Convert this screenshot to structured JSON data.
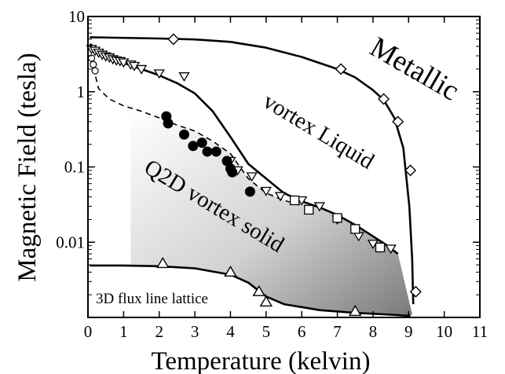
{
  "chart_data": {
    "type": "scatter",
    "title": "",
    "xlabel": "Temperature (kelvin)",
    "ylabel": "Magnetic Field (tesla)",
    "xlim": [
      0,
      11
    ],
    "ylim": [
      0.001,
      10
    ],
    "yscale": "log",
    "grid": false,
    "x_ticks": [
      "0",
      "1",
      "2",
      "3",
      "4",
      "5",
      "6",
      "7",
      "8",
      "9",
      "10",
      "11"
    ],
    "y_ticks": [
      {
        "value": 10,
        "label": "10"
      },
      {
        "value": 1,
        "label": "1"
      },
      {
        "value": 0.1,
        "label": "0.1"
      },
      {
        "value": 0.01,
        "label": "0.01"
      }
    ],
    "region_labels": {
      "metallic": "Metallic",
      "liquid": "vortex Liquid",
      "solid": "Q2D vortex solid",
      "lattice": "3D flux line lattice"
    },
    "curves": [
      {
        "id": "upper-critical",
        "style": "solid",
        "points": [
          [
            0.05,
            5.3
          ],
          [
            2,
            5.1
          ],
          [
            3,
            4.95
          ],
          [
            4,
            4.6
          ],
          [
            5,
            3.85
          ],
          [
            6,
            2.9
          ],
          [
            7,
            2.0
          ],
          [
            7.5,
            1.55
          ],
          [
            8,
            1.05
          ],
          [
            8.3,
            0.78
          ],
          [
            8.6,
            0.45
          ],
          [
            8.85,
            0.18
          ],
          [
            9.02,
            0.03
          ],
          [
            9.1,
            0.006
          ],
          [
            9.13,
            0.0015
          ]
        ]
      },
      {
        "id": "melting",
        "style": "solid",
        "points": [
          [
            0.05,
            4.3
          ],
          [
            0.5,
            3.2
          ],
          [
            1,
            2.4
          ],
          [
            1.5,
            2.0
          ],
          [
            2,
            1.65
          ],
          [
            2.5,
            1.3
          ],
          [
            3,
            0.95
          ],
          [
            3.5,
            0.55
          ],
          [
            4,
            0.25
          ],
          [
            4.5,
            0.11
          ],
          [
            5,
            0.07
          ],
          [
            5.5,
            0.045
          ],
          [
            6,
            0.035
          ],
          [
            6.5,
            0.029
          ],
          [
            7,
            0.023
          ],
          [
            7.5,
            0.017
          ],
          [
            8,
            0.012
          ],
          [
            8.4,
            0.009
          ],
          [
            8.7,
            0.007
          ]
        ]
      },
      {
        "id": "dashed-boundary",
        "style": "dashed",
        "points": [
          [
            0.15,
            2.1
          ],
          [
            0.3,
            1.1
          ],
          [
            0.6,
            0.8
          ],
          [
            1,
            0.65
          ],
          [
            1.5,
            0.55
          ],
          [
            2,
            0.45
          ],
          [
            2.5,
            0.36
          ],
          [
            3,
            0.3
          ],
          [
            3.5,
            0.22
          ],
          [
            4,
            0.15
          ],
          [
            4.5,
            0.07
          ],
          [
            5,
            0.045
          ],
          [
            5.5,
            0.036
          ],
          [
            6,
            0.031
          ]
        ]
      },
      {
        "id": "lattice-boundary",
        "style": "solid",
        "points": [
          [
            0.05,
            0.0049
          ],
          [
            1,
            0.0049
          ],
          [
            2,
            0.0048
          ],
          [
            3,
            0.0045
          ],
          [
            4,
            0.0037
          ],
          [
            4.5,
            0.0029
          ],
          [
            5,
            0.0019
          ],
          [
            5.5,
            0.0015
          ],
          [
            6.5,
            0.00125
          ],
          [
            7.5,
            0.00115
          ],
          [
            8.3,
            0.0011
          ],
          [
            9.05,
            0.00105
          ]
        ]
      }
    ],
    "series": [
      {
        "marker": "diamond",
        "points": [
          [
            2.4,
            5.0
          ],
          [
            7.1,
            2.0
          ],
          [
            8.3,
            0.8
          ],
          [
            8.7,
            0.4
          ],
          [
            9.05,
            0.09
          ],
          [
            9.2,
            0.0022
          ]
        ]
      },
      {
        "marker": "triangle-down",
        "points": [
          [
            0.1,
            3.7
          ],
          [
            0.2,
            3.5
          ],
          [
            0.3,
            3.3
          ],
          [
            0.4,
            3.1
          ],
          [
            0.5,
            2.95
          ],
          [
            0.6,
            2.85
          ],
          [
            0.7,
            2.7
          ],
          [
            0.8,
            2.6
          ],
          [
            0.9,
            2.55
          ],
          [
            1.0,
            2.45
          ],
          [
            1.2,
            2.3
          ],
          [
            1.3,
            2.2
          ],
          [
            1.5,
            2.0
          ],
          [
            2.0,
            1.75
          ],
          [
            2.7,
            1.6
          ],
          [
            4.0,
            0.12
          ],
          [
            4.2,
            0.09
          ],
          [
            4.6,
            0.075
          ],
          [
            5.0,
            0.048
          ],
          [
            5.4,
            0.041
          ],
          [
            6.0,
            0.036
          ],
          [
            6.5,
            0.03
          ],
          [
            7.0,
            0.02
          ],
          [
            7.6,
            0.012
          ],
          [
            8.0,
            0.0095
          ],
          [
            8.5,
            0.0082
          ]
        ]
      },
      {
        "marker": "triangle-up",
        "points": [
          [
            2.1,
            0.0052
          ],
          [
            4.0,
            0.004
          ],
          [
            4.8,
            0.0022
          ],
          [
            5.0,
            0.0016
          ],
          [
            7.5,
            0.0012
          ]
        ]
      },
      {
        "marker": "circle-filled",
        "points": [
          [
            2.2,
            0.47
          ],
          [
            2.25,
            0.38
          ],
          [
            2.7,
            0.27
          ],
          [
            2.95,
            0.19
          ],
          [
            3.2,
            0.21
          ],
          [
            3.35,
            0.16
          ],
          [
            3.6,
            0.16
          ],
          [
            3.9,
            0.12
          ],
          [
            4.0,
            0.095
          ],
          [
            4.05,
            0.085
          ],
          [
            4.55,
            0.047
          ]
        ]
      },
      {
        "marker": "circle-open",
        "points": [
          [
            0.1,
            2.8
          ],
          [
            0.15,
            2.3
          ],
          [
            0.2,
            1.9
          ]
        ]
      },
      {
        "marker": "square-open",
        "points": [
          [
            5.8,
            0.036
          ],
          [
            6.2,
            0.027
          ],
          [
            7.0,
            0.021
          ],
          [
            7.5,
            0.015
          ],
          [
            8.2,
            0.0085
          ]
        ]
      }
    ]
  }
}
